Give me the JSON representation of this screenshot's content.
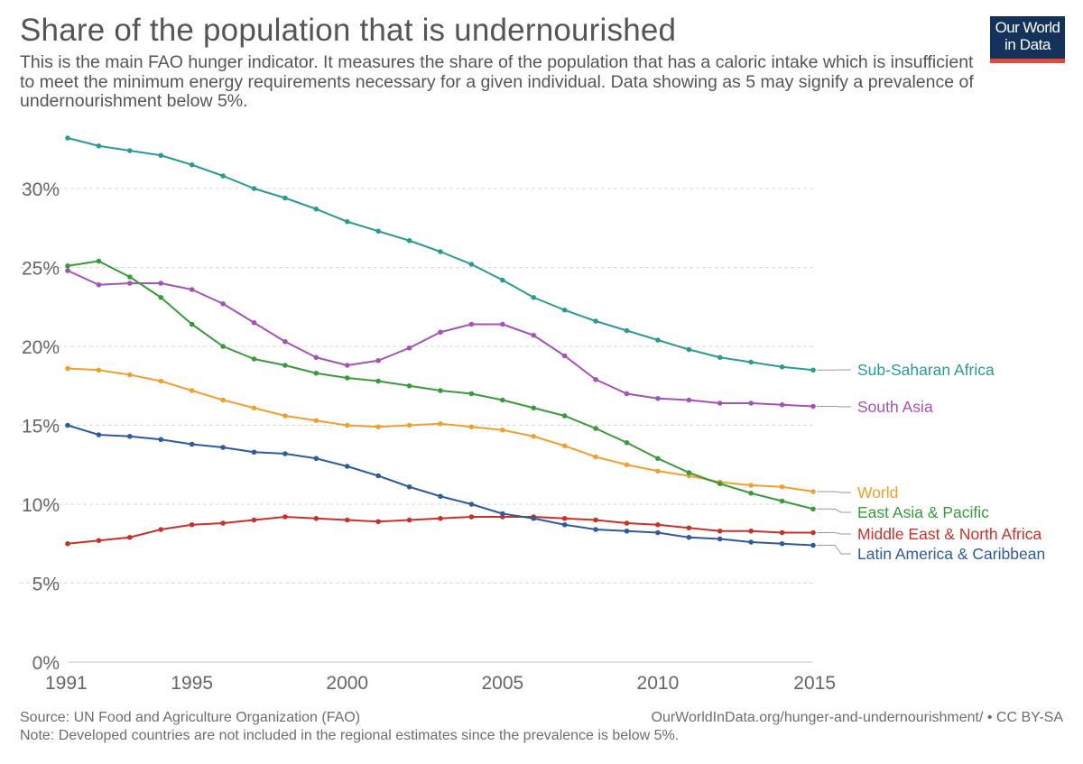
{
  "header": {
    "title": "Share of the population that is undernourished",
    "subtitle": "This is the main FAO hunger indicator. It measures the share of the population that has a caloric intake which is insufficient to meet the minimum energy requirements necessary for a given individual. Data showing as 5 may signify a prevalence of undernourishment below 5%."
  },
  "logo": {
    "line1": "Our World",
    "line2": "in Data",
    "bg_color": "#14325a",
    "bar_color": "#e04a3a"
  },
  "footer": {
    "source": "Source: UN Food and Agriculture Organization (FAO)",
    "url": "OurWorldInData.org/hunger-and-undernourishment/ • CC BY-SA",
    "note": "Note: Developed countries are not included in the regional estimates since the prevalence is below 5%."
  },
  "chart_data": {
    "type": "line",
    "title": "Share of the population that is undernourished",
    "xlabel": "",
    "ylabel": "",
    "xlim": [
      1991,
      2015
    ],
    "ylim": [
      0,
      33
    ],
    "x_ticks": [
      1991,
      1995,
      2000,
      2005,
      2010,
      2015
    ],
    "y_ticks": [
      0,
      5,
      10,
      15,
      20,
      25,
      30
    ],
    "y_tick_suffix": "%",
    "grid": true,
    "legend": "right, labels at line ends",
    "x": [
      1991,
      1992,
      1993,
      1994,
      1995,
      1996,
      1997,
      1998,
      1999,
      2000,
      2001,
      2002,
      2003,
      2004,
      2005,
      2006,
      2007,
      2008,
      2009,
      2010,
      2011,
      2012,
      2013,
      2014,
      2015
    ],
    "series": [
      {
        "name": "Sub-Saharan Africa",
        "color": "#2a9a93",
        "values": [
          33.2,
          32.7,
          32.4,
          32.1,
          31.5,
          30.8,
          30.0,
          29.4,
          28.7,
          27.9,
          27.3,
          26.7,
          26.0,
          25.2,
          24.2,
          23.1,
          22.3,
          21.6,
          21.0,
          20.4,
          19.8,
          19.3,
          19.0,
          18.7,
          18.5
        ]
      },
      {
        "name": "South Asia",
        "color": "#a552b8",
        "values": [
          24.8,
          23.9,
          24.0,
          24.0,
          23.6,
          22.7,
          21.5,
          20.3,
          19.3,
          18.8,
          19.1,
          19.9,
          20.9,
          21.4,
          21.4,
          20.7,
          19.4,
          17.9,
          17.0,
          16.7,
          16.6,
          16.4,
          16.4,
          16.3,
          16.2
        ]
      },
      {
        "name": "World",
        "color": "#efa030",
        "values": [
          18.6,
          18.5,
          18.2,
          17.8,
          17.2,
          16.6,
          16.1,
          15.6,
          15.3,
          15.0,
          14.9,
          15.0,
          15.1,
          14.9,
          14.7,
          14.3,
          13.7,
          13.0,
          12.5,
          12.1,
          11.8,
          11.4,
          11.2,
          11.1,
          10.8
        ]
      },
      {
        "name": "East Asia & Pacific",
        "color": "#3a9a3a",
        "values": [
          25.1,
          25.4,
          24.4,
          23.1,
          21.4,
          20.0,
          19.2,
          18.8,
          18.3,
          18.0,
          17.8,
          17.5,
          17.2,
          17.0,
          16.6,
          16.1,
          15.6,
          14.8,
          13.9,
          12.9,
          12.0,
          11.3,
          10.7,
          10.2,
          9.7
        ]
      },
      {
        "name": "Middle East & North Africa",
        "color": "#c8302a",
        "values": [
          7.5,
          7.7,
          7.9,
          8.4,
          8.7,
          8.8,
          9.0,
          9.2,
          9.1,
          9.0,
          8.9,
          9.0,
          9.1,
          9.2,
          9.2,
          9.2,
          9.1,
          9.0,
          8.8,
          8.7,
          8.5,
          8.3,
          8.3,
          8.2,
          8.2
        ]
      },
      {
        "name": "Latin America & Caribbean",
        "color": "#2f5a9c",
        "values": [
          15.0,
          14.4,
          14.3,
          14.1,
          13.8,
          13.6,
          13.3,
          13.2,
          12.9,
          12.4,
          11.8,
          11.1,
          10.5,
          10.0,
          9.4,
          9.1,
          8.7,
          8.4,
          8.3,
          8.2,
          7.9,
          7.8,
          7.6,
          7.5,
          7.4
        ]
      }
    ]
  }
}
